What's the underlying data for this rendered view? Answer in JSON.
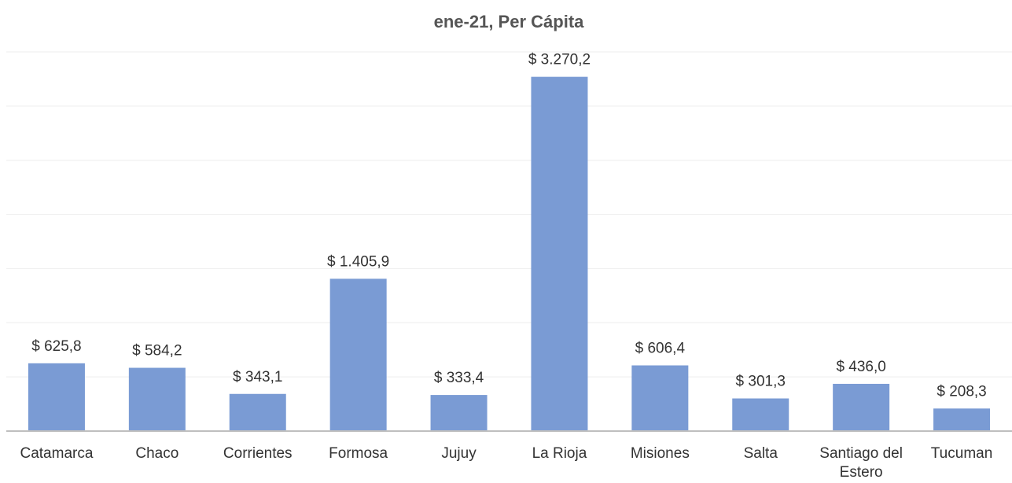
{
  "chart_data": {
    "type": "bar",
    "title": "ene-21, Per Cápita",
    "categories": [
      "Catamarca",
      "Chaco",
      "Corrientes",
      "Formosa",
      "Jujuy",
      "La Rioja",
      "Misiones",
      "Salta",
      "Santiago del Estero",
      "Tucuman"
    ],
    "values": [
      625.8,
      584.2,
      343.1,
      1405.9,
      333.4,
      3270.2,
      606.4,
      301.3,
      436.0,
      208.3
    ],
    "value_labels": [
      "$ 625,8",
      "$ 584,2",
      "$ 343,1",
      "$ 1.405,9",
      "$ 333,4",
      "$ 3.270,2",
      "$ 606,4",
      "$ 301,3",
      "$ 436,0",
      "$ 208,3"
    ],
    "color": "#7a9bd4",
    "ylim": [
      0,
      3500
    ],
    "yticks": [
      0,
      500,
      1000,
      1500,
      2000,
      2500,
      3000,
      3500
    ],
    "grid": true
  }
}
